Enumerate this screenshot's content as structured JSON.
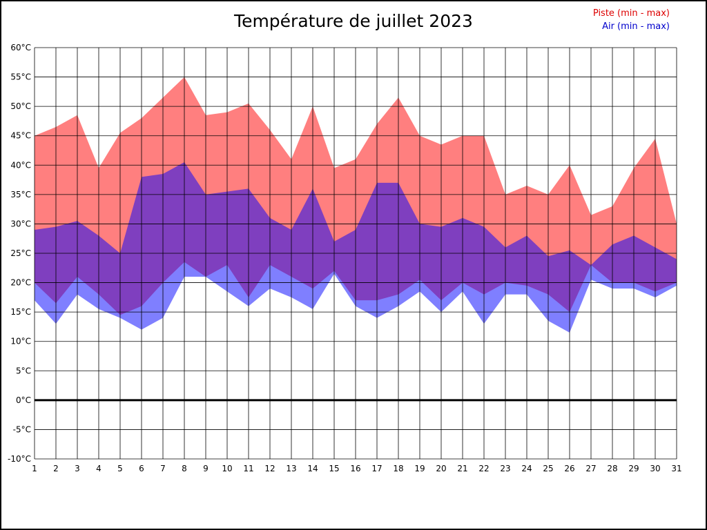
{
  "chart_data": {
    "type": "area",
    "title": "Température de juillet 2023",
    "x": [
      1,
      2,
      3,
      4,
      5,
      6,
      7,
      8,
      9,
      10,
      11,
      12,
      13,
      14,
      15,
      16,
      17,
      18,
      19,
      20,
      21,
      22,
      23,
      24,
      25,
      26,
      27,
      28,
      29,
      30,
      31
    ],
    "series": [
      {
        "name": "Piste (min - max)",
        "color": "#ff0000",
        "legend_text_color": "#dd0000",
        "max": [
          45,
          46.5,
          48.5,
          39.5,
          45.5,
          48,
          51.5,
          55,
          48.5,
          49,
          50.5,
          46,
          41,
          50,
          39.5,
          41,
          47,
          51.5,
          45,
          43.5,
          45,
          45,
          35,
          36.5,
          35,
          40,
          31.5,
          33,
          39.5,
          44.5,
          30
        ],
        "min": [
          20,
          16.5,
          21,
          18,
          14.5,
          16,
          20,
          23.5,
          21,
          23,
          17.5,
          23,
          21,
          19,
          22,
          17,
          17,
          18,
          20.5,
          17,
          20,
          18,
          20,
          19.5,
          18,
          15,
          23,
          20,
          20,
          18.5,
          20
        ]
      },
      {
        "name": "Air (min - max)",
        "color": "#0000ff",
        "legend_text_color": "#0000cc",
        "max": [
          29,
          29.5,
          30.5,
          28,
          25,
          38,
          38.5,
          40.5,
          35,
          35.5,
          36,
          31,
          29,
          36,
          27,
          29,
          37,
          37,
          30,
          29.5,
          31,
          29.5,
          26,
          28,
          24.5,
          25.5,
          23,
          26.5,
          28,
          26,
          24
        ],
        "min": [
          17,
          13,
          18,
          15.5,
          14,
          12,
          14,
          21,
          21,
          18.5,
          16,
          19,
          17.5,
          15.5,
          21.5,
          16,
          14,
          16,
          18.5,
          15,
          18.5,
          13,
          18,
          18,
          13.5,
          11.5,
          20.5,
          19,
          19,
          17.5,
          19.5
        ]
      }
    ],
    "fill_opacity": 0.5,
    "ylim": [
      -10,
      60
    ],
    "ytick_step": 5,
    "y_unit": "°C",
    "grid": true,
    "zero_line": true,
    "legend_position": "top-right"
  }
}
